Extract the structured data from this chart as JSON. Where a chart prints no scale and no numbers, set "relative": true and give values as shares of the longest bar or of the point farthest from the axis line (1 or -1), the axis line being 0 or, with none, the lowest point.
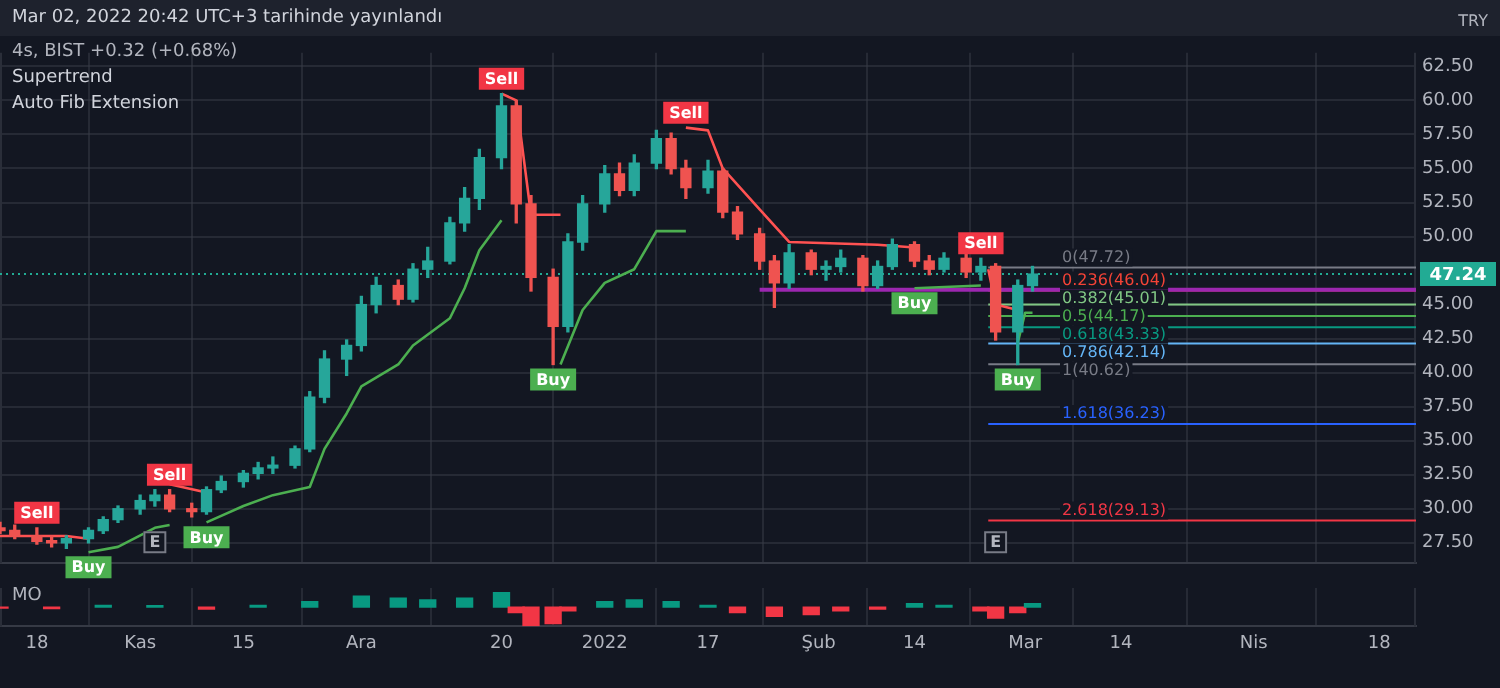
{
  "chart_data": [
    {
      "type": "candlestick",
      "title": "Mar 02, 2022 20:42 UTC+3 tarihinde yayınlandı",
      "subtitle": "4s, BIST +0.32 (+0.68%)",
      "ylabel": "TRY",
      "x": [
        "2021-10-13",
        "2021-10-15",
        "2021-10-18",
        "2021-10-20",
        "2021-10-22",
        "2021-10-25",
        "2021-10-27",
        "2021-10-29",
        "2021-11-01",
        "2021-11-03",
        "2021-11-05",
        "2021-11-08",
        "2021-11-10",
        "2021-11-12",
        "2021-11-15",
        "2021-11-17",
        "2021-11-19",
        "2021-11-22",
        "2021-11-24",
        "2021-11-26",
        "2021-11-29",
        "2021-12-01",
        "2021-12-03",
        "2021-12-06",
        "2021-12-08",
        "2021-12-10",
        "2021-12-13",
        "2021-12-15",
        "2021-12-17",
        "2021-12-20",
        "2021-12-22",
        "2021-12-24",
        "2021-12-27",
        "2021-12-29",
        "2021-12-31",
        "2022-01-03",
        "2022-01-05",
        "2022-01-07",
        "2022-01-10",
        "2022-01-12",
        "2022-01-14",
        "2022-01-17",
        "2022-01-19",
        "2022-01-21",
        "2022-01-24",
        "2022-01-26",
        "2022-01-28",
        "2022-01-31",
        "2022-02-02",
        "2022-02-04",
        "2022-02-07",
        "2022-02-09",
        "2022-02-11",
        "2022-02-14",
        "2022-02-16",
        "2022-02-18",
        "2022-02-21",
        "2022-02-23",
        "2022-02-25",
        "2022-02-28",
        "2022-03-02"
      ],
      "ohlc": [
        [
          28.6,
          29,
          28.2,
          28.4
        ],
        [
          28.4,
          28.8,
          27.8,
          28
        ],
        [
          28,
          28.6,
          27.4,
          27.6
        ],
        [
          27.6,
          28,
          27.2,
          27.5
        ],
        [
          27.5,
          28,
          27.1,
          27.8
        ],
        [
          27.8,
          28.6,
          27.5,
          28.4
        ],
        [
          28.4,
          29.4,
          28.2,
          29.2
        ],
        [
          29.2,
          30.2,
          29,
          30
        ],
        [
          30,
          31,
          29.6,
          30.6
        ],
        [
          30.6,
          31.4,
          30.2,
          31
        ],
        [
          31,
          31.4,
          29.8,
          30
        ],
        [
          30,
          30.4,
          29.4,
          29.8
        ],
        [
          29.8,
          31.6,
          29.6,
          31.4
        ],
        [
          31.4,
          32.4,
          31.2,
          32
        ],
        [
          32,
          32.8,
          31.6,
          32.6
        ],
        [
          32.6,
          33.4,
          32.2,
          33
        ],
        [
          33,
          33.8,
          32.6,
          33.2
        ],
        [
          33.2,
          34.6,
          33,
          34.4
        ],
        [
          34.4,
          38.6,
          34.2,
          38.2
        ],
        [
          38.2,
          41.6,
          37.8,
          41
        ],
        [
          41,
          42.4,
          39.8,
          42
        ],
        [
          42,
          45.6,
          41.6,
          45
        ],
        [
          45,
          47,
          44.4,
          46.4
        ],
        [
          46.4,
          46.8,
          45,
          45.4
        ],
        [
          45.4,
          48,
          45.2,
          47.6
        ],
        [
          47.6,
          49.2,
          47,
          48.2
        ],
        [
          48.2,
          51.4,
          48,
          51
        ],
        [
          51,
          53.6,
          50.4,
          52.8
        ],
        [
          52.8,
          56.4,
          52,
          55.8
        ],
        [
          55.8,
          60.5,
          55,
          59.6
        ],
        [
          59.6,
          60,
          51,
          52.4
        ],
        [
          52.4,
          53,
          46,
          47
        ],
        [
          47,
          47.6,
          40.6,
          43.4
        ],
        [
          43.4,
          50.2,
          43,
          49.6
        ],
        [
          49.6,
          53,
          49,
          52.4
        ],
        [
          52.4,
          55.2,
          51.8,
          54.6
        ],
        [
          54.6,
          55.4,
          53,
          53.4
        ],
        [
          53.4,
          56,
          53,
          55.4
        ],
        [
          55.4,
          57.8,
          55,
          57.2
        ],
        [
          57.2,
          57.6,
          54.6,
          55
        ],
        [
          55,
          55.6,
          52.8,
          53.6
        ],
        [
          53.6,
          55.6,
          53.2,
          54.8
        ],
        [
          54.8,
          55,
          51.4,
          51.8
        ],
        [
          51.8,
          52.2,
          49.8,
          50.2
        ],
        [
          50.2,
          50.6,
          47.6,
          48.2
        ],
        [
          48.2,
          48.6,
          44.8,
          46.6
        ],
        [
          46.6,
          49.4,
          46.2,
          48.8
        ],
        [
          48.8,
          49,
          47.2,
          47.6
        ],
        [
          47.6,
          48.2,
          46.8,
          47.8
        ],
        [
          47.8,
          49,
          47.4,
          48.4
        ],
        [
          48.4,
          48.6,
          46,
          46.4
        ],
        [
          46.4,
          48.2,
          46.2,
          47.8
        ],
        [
          47.8,
          49.8,
          47.6,
          49.4
        ],
        [
          49.4,
          49.6,
          47.8,
          48.2
        ],
        [
          48.2,
          48.6,
          47.2,
          47.6
        ],
        [
          47.6,
          48.8,
          47.4,
          48.4
        ],
        [
          48.4,
          48.8,
          47,
          47.4
        ],
        [
          47.4,
          48.4,
          46.8,
          47.8
        ],
        [
          47.8,
          48,
          42.4,
          43
        ],
        [
          43,
          46.8,
          40.6,
          46.4
        ],
        [
          46.4,
          47.8,
          46,
          47.24
        ]
      ],
      "series": [
        {
          "type": "line",
          "color": "#4caf50",
          "x": [
            "2021-10-25",
            "2021-10-29",
            "2021-11-03",
            "2021-11-05",
            "2021-11-08",
            "2021-11-10",
            "2021-11-15",
            "2021-11-19",
            "2021-11-24",
            "2021-11-26",
            "2021-11-29",
            "2021-12-01",
            "2021-12-06",
            "2021-12-08",
            "2021-12-13",
            "2021-12-15",
            "2021-12-17",
            "2021-12-20",
            "2021-12-22",
            "2021-12-28",
            "2021-12-31",
            "2022-01-03",
            "2022-01-07",
            "2022-01-10",
            "2022-01-14",
            "2022-01-17",
            "2022-02-14",
            "2022-02-23",
            "2022-02-24",
            "2022-02-28",
            "2022-03-01",
            "2022-03-02"
          ],
          "values": [
            26.8,
            27.2,
            28.6,
            28.8,
            null,
            29,
            30.2,
            31,
            31.6,
            34.4,
            37,
            39,
            40.6,
            42,
            44,
            46.2,
            49,
            51.2,
            null,
            40.6,
            44.6,
            46.6,
            47.6,
            50.4,
            50.4,
            null,
            46.2,
            46.4,
            null,
            42.2,
            44.4,
            44.4
          ]
        },
        {
          "type": "line",
          "color": "#ff5252",
          "x": [
            "2021-10-13",
            "2021-10-22",
            "2021-10-25",
            "2021-10-27",
            "2021-11-05",
            "2021-11-10",
            "2021-11-12",
            "2021-12-20",
            "2021-12-22",
            "2021-12-24",
            "2021-12-28",
            "2021-12-30",
            "2022-01-14",
            "2022-01-17",
            "2022-01-19",
            "2022-01-24",
            "2022-01-28",
            "2022-02-09",
            "2022-02-14",
            "2022-02-16",
            "2022-02-24",
            "2022-02-25",
            "2022-02-28"
          ],
          "values": [
            28,
            28,
            27.8,
            null,
            31.8,
            31.2,
            null,
            60.5,
            60,
            51.6,
            51.6,
            null,
            58,
            57.8,
            55,
            52,
            49.6,
            49.4,
            49.2,
            null,
            47.6,
            45,
            44.6
          ]
        }
      ],
      "xlim": [
        "2021-10-13",
        "2022-04-23"
      ],
      "xticks": [
        {
          "value": "2021-10-18",
          "label": null
        },
        {
          "value": "2021-11-01",
          "label": null
        },
        {
          "value": "2021-11-15",
          "label": null
        },
        {
          "value": "2021-12-01",
          "label": null
        },
        {
          "value": "2021-12-20",
          "label": null
        },
        {
          "value": "2022-01-03",
          "label": null
        },
        {
          "value": "2022-01-17",
          "label": null
        },
        {
          "value": "2022-02-01",
          "label": null
        },
        {
          "value": "2022-02-14",
          "label": null
        },
        {
          "value": "2022-03-01",
          "label": null
        },
        {
          "value": "2022-03-14",
          "label": null
        },
        {
          "value": "2022-04-01",
          "label": null
        },
        {
          "value": "2022-04-18",
          "label": null
        }
      ],
      "ylim": [
        26,
        63.5
      ],
      "yticks": [
        {
          "value": 27.5,
          "label": "27.50"
        },
        {
          "value": 30,
          "label": "30.00"
        },
        {
          "value": 32.5,
          "label": "32.50"
        },
        {
          "value": 35,
          "label": "35.00"
        },
        {
          "value": 37.5,
          "label": "37.50"
        },
        {
          "value": 40,
          "label": "40.00"
        },
        {
          "value": 42.5,
          "label": "42.50"
        },
        {
          "value": 45,
          "label": "45.00"
        },
        {
          "value": 50,
          "label": "50.00"
        },
        {
          "value": 52.5,
          "label": "52.50"
        },
        {
          "value": 55,
          "label": "55.00"
        },
        {
          "value": 57.5,
          "label": "57.50"
        },
        {
          "value": 60,
          "label": "60.00"
        },
        {
          "value": 62.5,
          "label": "62.50"
        }
      ],
      "grid": true,
      "tick_labels": "y",
      "marker": "none",
      "ref_lines": [
        {
          "axis": "y",
          "value": 47.72,
          "label": "0(47.72)",
          "color": "#787b86"
        },
        {
          "axis": "y",
          "value": 46.04,
          "label": "0.236(46.04)",
          "color": "#f44336"
        },
        {
          "axis": "y",
          "value": 45.01,
          "label": "0.382(45.01)",
          "color": "#81c784"
        },
        {
          "axis": "y",
          "value": 44.17,
          "label": "0.5(44.17)",
          "color": "#4caf50"
        },
        {
          "axis": "y",
          "value": 43.33,
          "label": "0.618(43.33)",
          "color": "#089981"
        },
        {
          "axis": "y",
          "value": 42.14,
          "label": "0.786(42.14)",
          "color": "#64b5f6"
        },
        {
          "axis": "y",
          "value": 40.62,
          "label": "1(40.62)",
          "color": "#787b86"
        },
        {
          "axis": "y",
          "value": 36.23,
          "label": "1.618(36.23)",
          "color": "#2962ff"
        },
        {
          "axis": "y",
          "value": 29.13,
          "label": "2.618(29.13)",
          "color": "#f23645"
        },
        {
          "axis": "y",
          "value": 46.1,
          "color": "#9c27b0"
        },
        {
          "axis": "y",
          "value": 47.24,
          "label": "47.24",
          "color": "#22ab94",
          "line_style": "dotted"
        }
      ],
      "annotations": [
        "Supertrend",
        "Auto Fib Extension",
        {
          "text": "Sell",
          "x": "2021-10-18",
          "y": 28.6
        },
        {
          "text": "Buy",
          "x": "2021-10-25",
          "y": 26.8
        },
        {
          "text": "Sell",
          "x": "2021-11-05",
          "y": 31.4
        },
        {
          "text": "Buy",
          "x": "2021-11-10",
          "y": 29
        },
        {
          "text": "Sell",
          "x": "2021-12-20",
          "y": 60.5
        },
        {
          "text": "Buy",
          "x": "2021-12-27",
          "y": 40.6
        },
        {
          "text": "Sell",
          "x": "2022-01-14",
          "y": 58
        },
        {
          "text": "Buy",
          "x": "2022-02-14",
          "y": 46.2
        },
        {
          "text": "Sell",
          "x": "2022-02-23",
          "y": 48.4
        },
        {
          "text": "Buy",
          "x": "2022-02-28",
          "y": 40.6
        },
        {
          "text": "E",
          "x": "2021-11-03"
        },
        {
          "text": "E",
          "x": "2022-02-25"
        }
      ]
    },
    {
      "type": "bar",
      "title": "MO",
      "relative": true,
      "grid": true,
      "tick_labels": "x",
      "x": [
        "2021-10-13",
        "2021-10-20",
        "2021-10-27",
        "2021-11-03",
        "2021-11-10",
        "2021-11-17",
        "2021-11-24",
        "2021-12-01",
        "2021-12-06",
        "2021-12-10",
        "2021-12-15",
        "2021-12-20",
        "2021-12-22",
        "2021-12-24",
        "2021-12-27",
        "2021-12-29",
        "2022-01-03",
        "2022-01-07",
        "2022-01-12",
        "2022-01-17",
        "2022-01-21",
        "2022-01-26",
        "2022-01-31",
        "2022-02-04",
        "2022-02-09",
        "2022-02-14",
        "2022-02-18",
        "2022-02-23",
        "2022-02-25",
        "2022-02-28",
        "2022-03-02"
      ],
      "values": [
        -0.05,
        -0.08,
        0.1,
        0.08,
        -0.1,
        0.1,
        0.3,
        0.6,
        0.5,
        0.4,
        0.5,
        0.8,
        -0.3,
        -1,
        -0.9,
        -0.2,
        0.3,
        0.4,
        0.3,
        0.1,
        -0.3,
        -0.5,
        -0.4,
        -0.2,
        -0.1,
        0.2,
        0.1,
        -0.2,
        -0.6,
        -0.3,
        0.2
      ],
      "colors": [
        "#f23645",
        "#f23645",
        "#089981",
        "#089981",
        "#f23645",
        "#089981",
        "#089981",
        "#089981",
        "#089981",
        "#089981",
        "#089981",
        "#089981",
        "#f23645",
        "#f23645",
        "#f23645",
        "#f23645",
        "#089981",
        "#089981",
        "#089981",
        "#089981",
        "#f23645",
        "#f23645",
        "#f23645",
        "#f23645",
        "#f23645",
        "#089981",
        "#089981",
        "#f23645",
        "#f23645",
        "#f23645",
        "#089981"
      ],
      "xlim": [
        "2021-10-13",
        "2022-04-23"
      ],
      "xticks": [
        {
          "value": "2021-10-18",
          "label": "18"
        },
        {
          "value": "2021-11-01",
          "label": "Kas"
        },
        {
          "value": "2021-11-15",
          "label": "15"
        },
        {
          "value": "2021-12-01",
          "label": "Ara"
        },
        {
          "value": "2021-12-20",
          "label": "20"
        },
        {
          "value": "2022-01-03",
          "label": "2022"
        },
        {
          "value": "2022-01-17",
          "label": "17"
        },
        {
          "value": "2022-02-01",
          "label": "Şub"
        },
        {
          "value": "2022-02-14",
          "label": "14"
        },
        {
          "value": "2022-03-01",
          "label": "Mar"
        },
        {
          "value": "2022-03-14",
          "label": "14"
        },
        {
          "value": "2022-04-01",
          "label": "Nis"
        },
        {
          "value": "2022-04-18",
          "label": "18"
        }
      ]
    }
  ]
}
